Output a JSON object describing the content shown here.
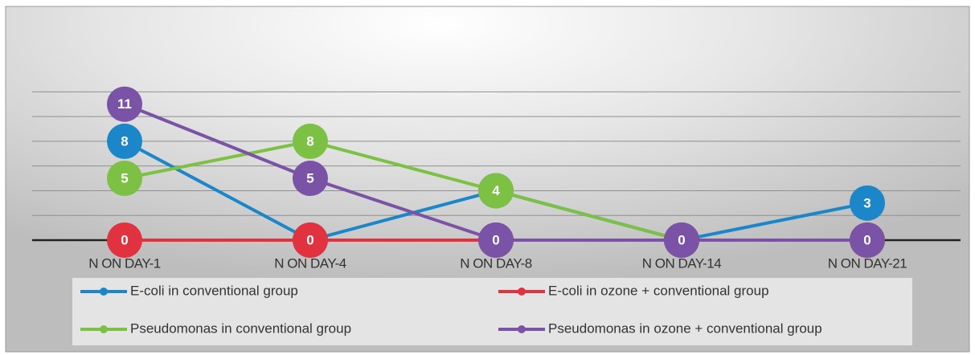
{
  "chart_data": {
    "type": "line",
    "categories": [
      "N ON DAY-1",
      "N ON DAY-4",
      "N ON DAY-8",
      "N ON DAY-14",
      "N ON DAY-21"
    ],
    "series": [
      {
        "name": "E-coli in conventional  group",
        "color": "#1b86c8",
        "values": [
          8,
          0,
          4,
          0,
          3
        ]
      },
      {
        "name": "Pseudomonas in conventional  group",
        "color": "#7cc143",
        "values": [
          5,
          8,
          4,
          0,
          0
        ]
      },
      {
        "name": "E-coli in ozone + conventional  group",
        "color": "#e0333f",
        "values": [
          0,
          0,
          0,
          0,
          0
        ]
      },
      {
        "name": "Pseudomonas in ozone + conventional  group",
        "color": "#7b53a6",
        "values": [
          11,
          5,
          0,
          0,
          0
        ]
      }
    ],
    "ylim": [
      0,
      18
    ],
    "yticks": [
      0,
      2,
      4,
      6,
      8,
      10,
      12
    ],
    "grid": true
  }
}
